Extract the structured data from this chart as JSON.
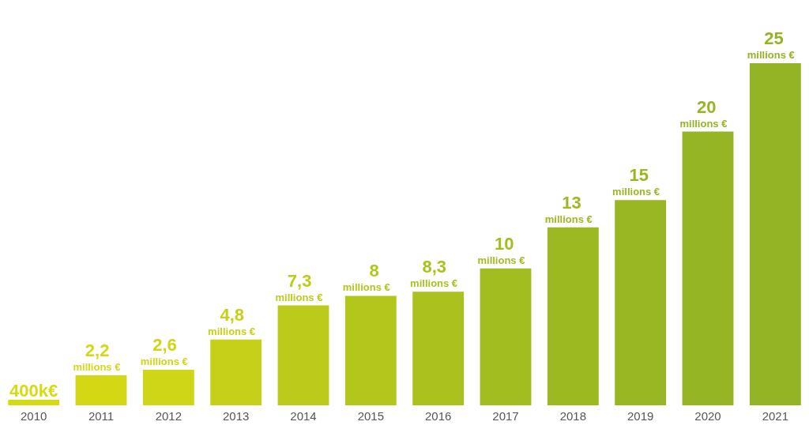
{
  "chart_data": {
    "type": "bar",
    "categories": [
      "2010",
      "2011",
      "2012",
      "2013",
      "2014",
      "2015",
      "2016",
      "2017",
      "2018",
      "2019",
      "2020",
      "2021"
    ],
    "values": [
      400000,
      2200000,
      2600000,
      4800000,
      7300000,
      8000000,
      8300000,
      10000000,
      13000000,
      15000000,
      20000000,
      25000000
    ],
    "colors": [
      "#d6da12",
      "#d3d815",
      "#cfd517",
      "#c6d018",
      "#bccb1a",
      "#b2c61c",
      "#aac11e",
      "#a2bd20",
      "#9cb922",
      "#98b723",
      "#95b524",
      "#93b424"
    ],
    "value_labels": [
      "400k€",
      "2,2 millions €",
      "2,6 millions €",
      "4,8 millions €",
      "7,3 millions €",
      "8 millions €",
      "8,3 millions €",
      "10 millions €",
      "13 millions €",
      "15 millions €",
      "20 millions €",
      "25 millions €"
    ],
    "grid": false,
    "legend": false
  }
}
